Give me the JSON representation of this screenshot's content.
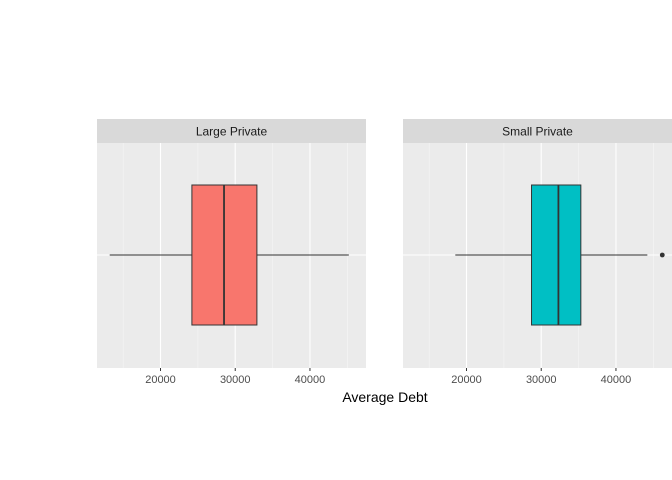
{
  "chart_data": {
    "type": "boxplot",
    "xlabel": "Average Debt",
    "ylabel": "",
    "x_ticks": [
      20000,
      30000,
      40000
    ],
    "x_tick_labels": [
      "20000",
      "30000",
      "40000"
    ],
    "xlim": [
      11500,
      47500
    ],
    "grid": true,
    "legend": "none",
    "panels": [
      {
        "name": "Large Private",
        "color": "#F8766D",
        "whisker_low": 13200,
        "q1": 24200,
        "median": 28500,
        "q3": 32900,
        "whisker_high": 45200,
        "outliers": []
      },
      {
        "name": "Small Private",
        "color": "#00BFC4",
        "whisker_low": 18500,
        "q1": 28700,
        "median": 32300,
        "q3": 35300,
        "whisker_high": 44200,
        "outliers": [
          46200
        ]
      }
    ]
  },
  "colors": {
    "panel_background": "#EBEBEB",
    "strip_background": "#D9D9D9",
    "grid_major": "#FFFFFF",
    "grid_minor": "#F5F5F5",
    "box_outline": "#333333"
  }
}
